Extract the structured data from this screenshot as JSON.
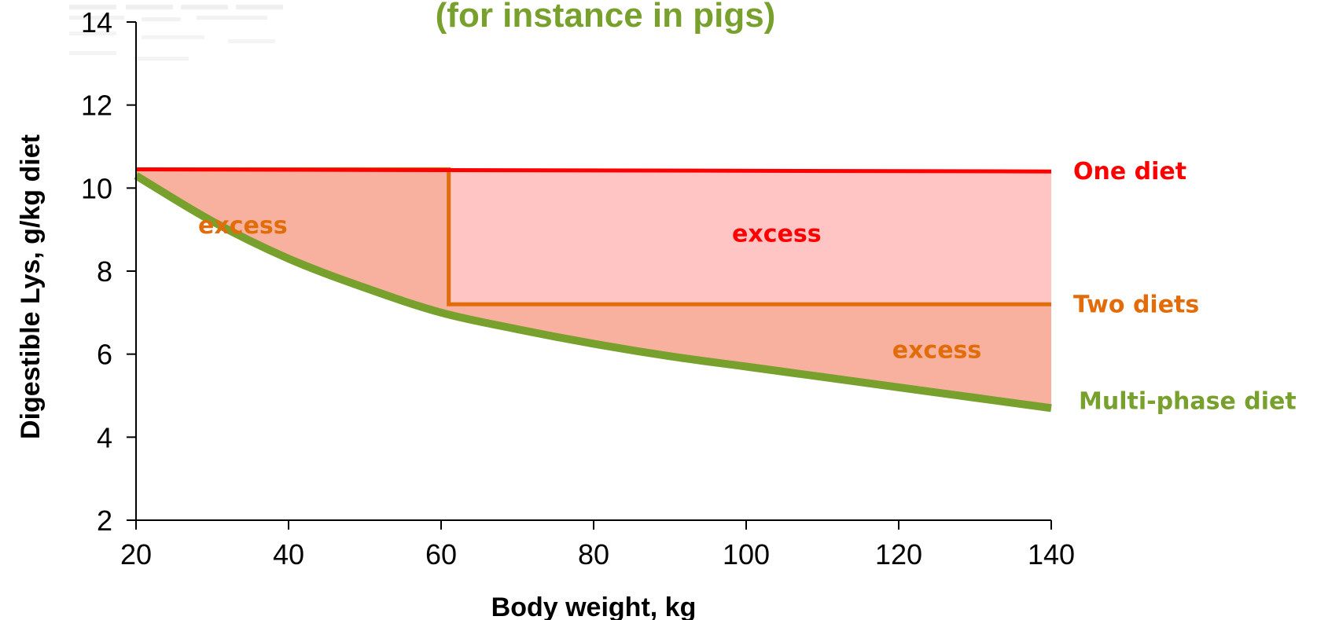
{
  "chart_data": {
    "type": "line",
    "title": "(for instance in pigs)",
    "xlabel": "Body weight, kg",
    "ylabel": "Digestible Lys, g/kg diet",
    "xlim": [
      20,
      140
    ],
    "ylim": [
      2,
      14
    ],
    "x_ticks": [
      "20",
      "40",
      "60",
      "80",
      "100",
      "120",
      "140"
    ],
    "y_ticks": [
      "2",
      "4",
      "6",
      "8",
      "10",
      "12",
      "14"
    ],
    "grid": false,
    "legend": "none",
    "series": [
      {
        "name": "One diet",
        "color": "#ff0000",
        "x": [
          20,
          140
        ],
        "y": [
          10.45,
          10.4
        ]
      },
      {
        "name": "Two diets",
        "color": "#e36c0a",
        "x": [
          20,
          61,
          61,
          140
        ],
        "y": [
          10.45,
          10.45,
          7.2,
          7.2
        ]
      },
      {
        "name": "Multi-phase diet",
        "color": "#77a02c",
        "x": [
          20,
          30,
          40,
          50,
          60,
          70,
          80,
          90,
          100,
          110,
          120,
          130,
          140
        ],
        "y": [
          10.3,
          9.2,
          8.3,
          7.6,
          7.0,
          6.6,
          6.25,
          5.95,
          5.7,
          5.45,
          5.2,
          4.95,
          4.7
        ]
      }
    ],
    "annotations": [
      {
        "text": "excess",
        "x": 34,
        "y": 9.1,
        "color": "#e36c0a"
      },
      {
        "text": "excess",
        "x": 104,
        "y": 8.9,
        "color": "#ff0000"
      },
      {
        "text": "excess",
        "x": 125,
        "y": 6.1,
        "color": "#e36c0a"
      }
    ],
    "fill_colors": {
      "one_diet_excess": "#ffc4c4",
      "two_diets_excess": "#f7b19e"
    }
  },
  "title_color": "#77a02c"
}
